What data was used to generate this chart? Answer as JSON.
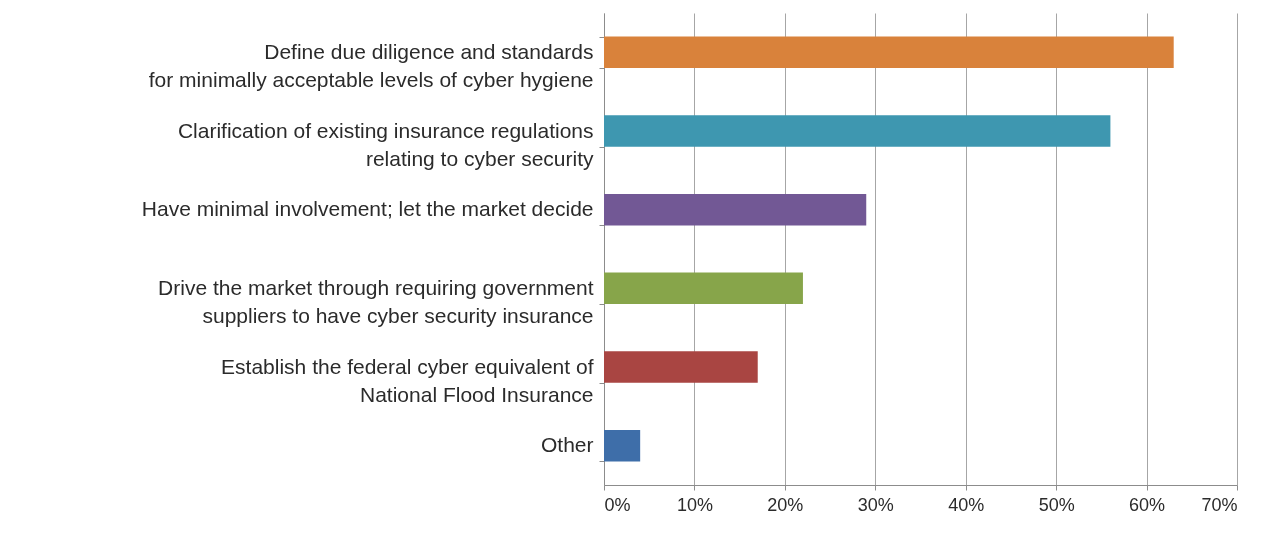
{
  "chart_data": {
    "type": "bar",
    "orientation": "horizontal",
    "categories": [
      "Define due diligence and standards\nfor minimally acceptable levels of cyber hygiene",
      "Clarification of existing insurance regulations\nrelating to cyber security",
      "Have minimal involvement; let the market decide",
      "Drive the market through requiring government\nsuppliers to have cyber security insurance",
      "Establish the federal cyber equivalent of\nNational Flood Insurance",
      "Other"
    ],
    "values": [
      63,
      56,
      29,
      22,
      17,
      4
    ],
    "colors": [
      "#d9823b",
      "#3e97b0",
      "#725895",
      "#87a54a",
      "#a94542",
      "#3e6ea9"
    ],
    "xlim": [
      0,
      70
    ],
    "xticks": [
      {
        "value": 0,
        "label": "0%"
      },
      {
        "value": 10,
        "label": "10%"
      },
      {
        "value": 20,
        "label": "20%"
      },
      {
        "value": 30,
        "label": "30%"
      },
      {
        "value": 40,
        "label": "40%"
      },
      {
        "value": 50,
        "label": "50%"
      },
      {
        "value": 60,
        "label": "60%"
      },
      {
        "value": 70,
        "label": "70%"
      }
    ],
    "grid": "x"
  }
}
